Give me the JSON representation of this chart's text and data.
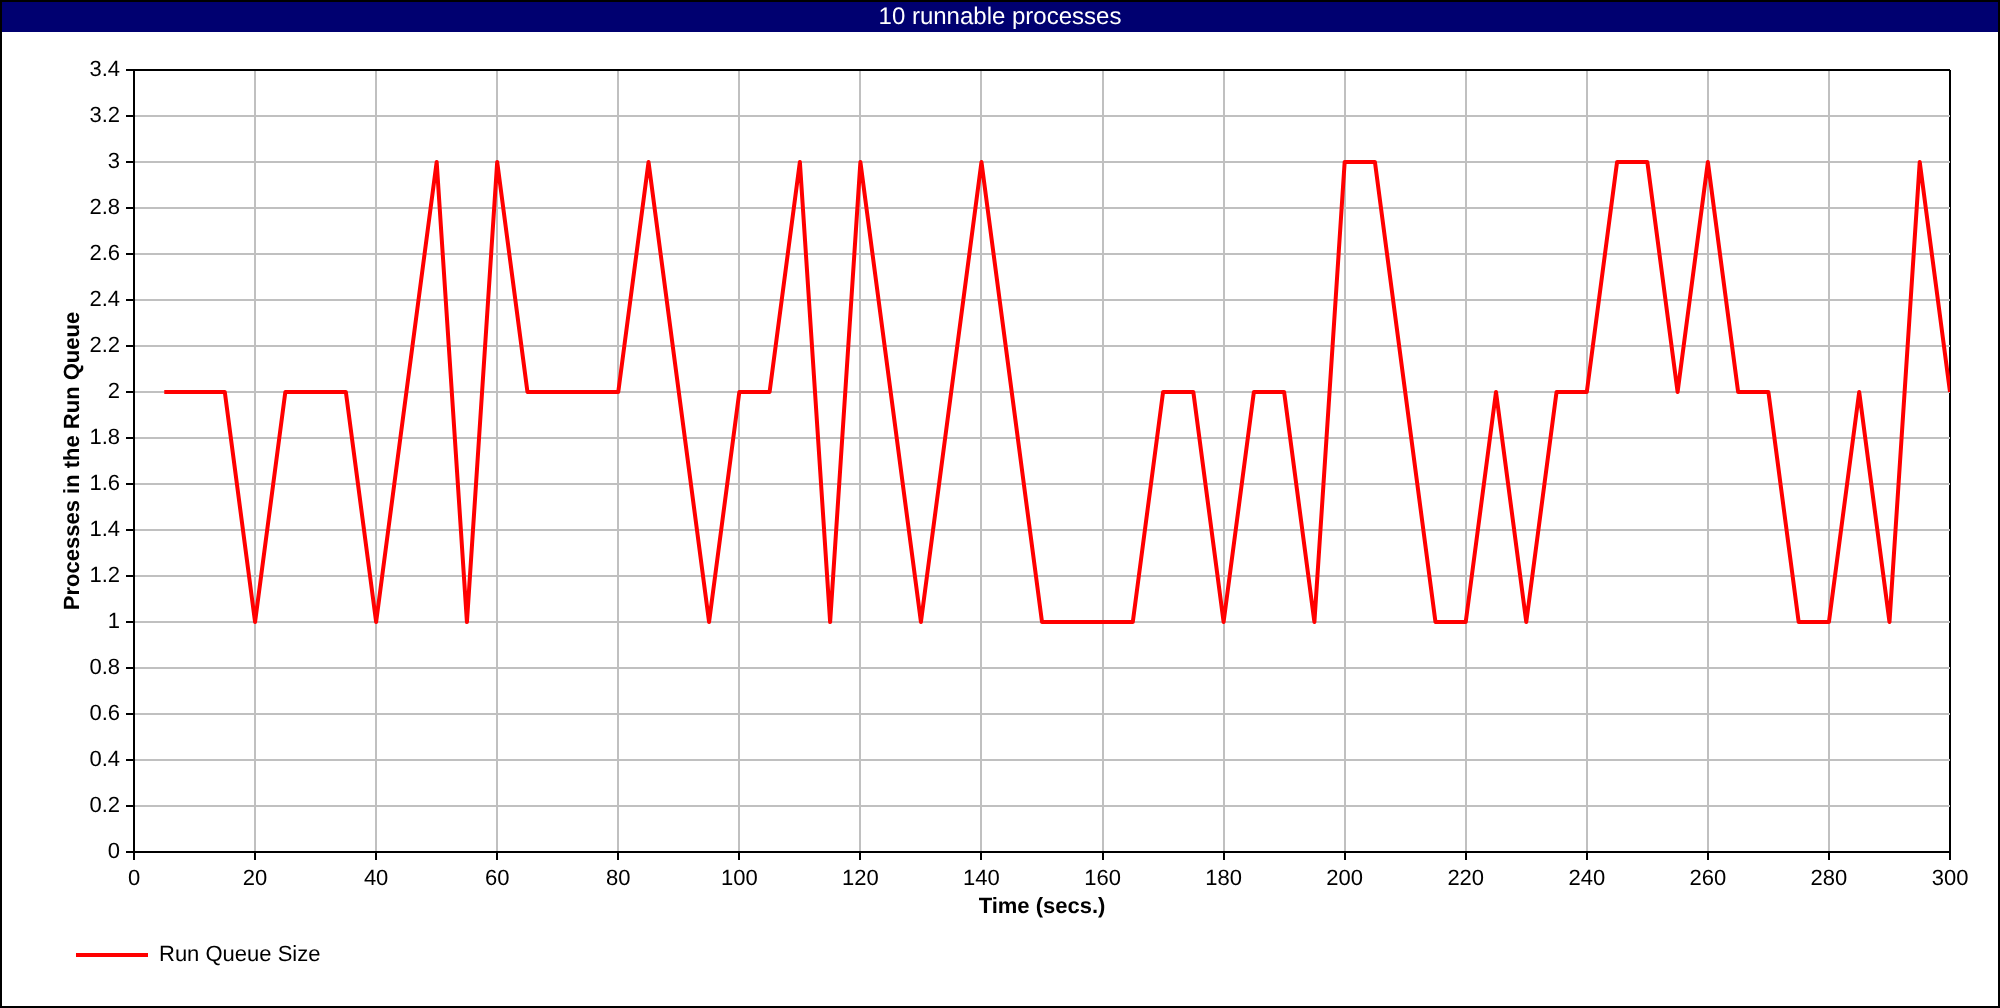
{
  "chart_data": {
    "type": "line",
    "title": "10 runnable processes",
    "xlabel": "Time (secs.)",
    "ylabel": "Processes in the Run Queue",
    "x": [
      5,
      10,
      15,
      20,
      25,
      30,
      35,
      40,
      45,
      50,
      55,
      60,
      65,
      70,
      75,
      80,
      85,
      90,
      95,
      100,
      105,
      110,
      115,
      120,
      125,
      130,
      135,
      140,
      145,
      150,
      155,
      160,
      165,
      170,
      175,
      180,
      185,
      190,
      195,
      200,
      205,
      210,
      215,
      220,
      225,
      230,
      235,
      240,
      245,
      250,
      255,
      260,
      265,
      270,
      275,
      280,
      285,
      290,
      295,
      300
    ],
    "series": [
      {
        "name": "Run Queue Size",
        "color": "#ff0000",
        "values": [
          2,
          2,
          2,
          1,
          2,
          2,
          2,
          1,
          2,
          3,
          1,
          3,
          2,
          2,
          2,
          2,
          3,
          2,
          1,
          2,
          2,
          3,
          1,
          3,
          2,
          1,
          2,
          3,
          2,
          1,
          1,
          1,
          1,
          2,
          2,
          1,
          2,
          2,
          1,
          3,
          3,
          2,
          1,
          1,
          2,
          1,
          2,
          2,
          3,
          3,
          2,
          3,
          2,
          2,
          1,
          1,
          2,
          1,
          3,
          2
        ]
      }
    ],
    "xlim": [
      0,
      300
    ],
    "xticks": [
      0,
      20,
      40,
      60,
      80,
      100,
      120,
      140,
      160,
      180,
      200,
      220,
      240,
      260,
      280,
      300
    ],
    "ylim": [
      0,
      3.4
    ],
    "yticks": [
      0,
      0.2,
      0.4,
      0.6,
      0.8,
      1,
      1.2,
      1.4,
      1.6,
      1.8,
      2,
      2.2,
      2.4,
      2.6,
      2.8,
      3,
      3.2,
      3.4
    ],
    "grid": true,
    "legend": "bottom left",
    "marker": "none"
  }
}
